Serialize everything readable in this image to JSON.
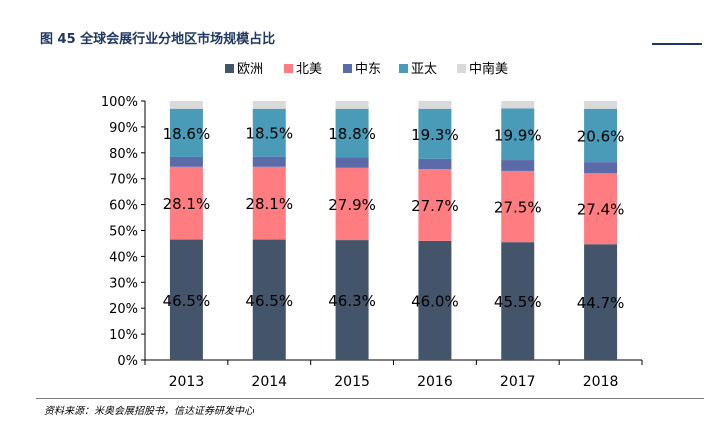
{
  "figure": {
    "title": "图 45  全球会展行业分地区市场规模占比",
    "source": "资料来源：米奥会展招股书，信达证券研发中心"
  },
  "chart_data": {
    "type": "bar",
    "stacked": true,
    "title": "",
    "xlabel": "",
    "ylabel": "",
    "categories": [
      "2013",
      "2014",
      "2015",
      "2016",
      "2017",
      "2018"
    ],
    "ylim": [
      0,
      100
    ],
    "yticks": [
      "0%",
      "10%",
      "20%",
      "30%",
      "40%",
      "50%",
      "60%",
      "70%",
      "80%",
      "90%",
      "100%"
    ],
    "legend_position": "top",
    "grid": false,
    "series": [
      {
        "name": "欧洲",
        "color": "#44546a",
        "values": [
          46.5,
          46.5,
          46.3,
          46.0,
          45.5,
          44.7
        ],
        "labels": [
          "46.5%",
          "46.5%",
          "46.3%",
          "46.0%",
          "45.5%",
          "44.7%"
        ]
      },
      {
        "name": "北美",
        "color": "#ff7c80",
        "values": [
          28.1,
          28.1,
          27.9,
          27.7,
          27.5,
          27.4
        ],
        "labels": [
          "28.1%",
          "28.1%",
          "27.9%",
          "27.7%",
          "27.5%",
          "27.4%"
        ]
      },
      {
        "name": "中东",
        "color": "#5b6aa8",
        "values": [
          3.8,
          3.9,
          4.0,
          4.0,
          4.2,
          4.3
        ],
        "labels": [
          "",
          "",
          "",
          "",
          "",
          ""
        ]
      },
      {
        "name": "亚太",
        "color": "#4a9bb8",
        "values": [
          18.6,
          18.5,
          18.8,
          19.3,
          19.9,
          20.6
        ],
        "labels": [
          "18.6%",
          "18.5%",
          "18.8%",
          "19.3%",
          "19.9%",
          "20.6%"
        ]
      },
      {
        "name": "中南美",
        "color": "#d9d9d9",
        "values": [
          3.0,
          3.0,
          3.0,
          3.0,
          2.9,
          3.0
        ],
        "labels": [
          "",
          "",
          "",
          "",
          "",
          ""
        ]
      }
    ]
  }
}
